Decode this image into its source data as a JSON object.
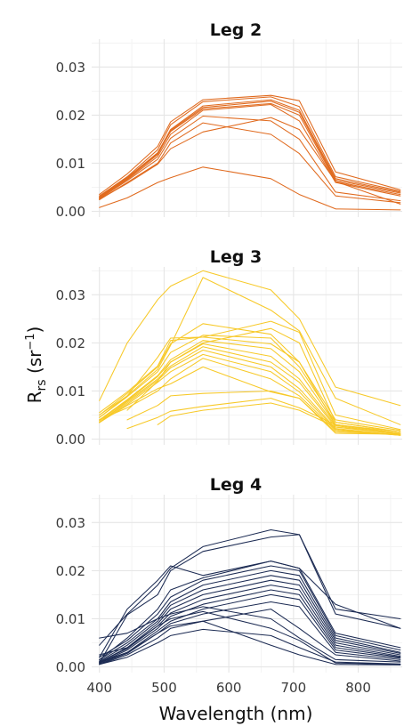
{
  "chart_data": {
    "type": "line",
    "ylabel": "R",
    "ylabel_sub": "rs",
    "ylabel_unit_open": " (sr",
    "ylabel_unit_sup": "−1",
    "ylabel_unit_close": ")",
    "xlabel": "Wavelength (nm)",
    "xlim": [
      388,
      868
    ],
    "ylim": [
      -0.0012,
      0.0358
    ],
    "xticks": [
      400,
      500,
      600,
      700,
      800
    ],
    "yticks": [
      0.0,
      0.01,
      0.02,
      0.03
    ],
    "ytick_labels": [
      "0.00",
      "0.01",
      "0.02",
      "0.03"
    ],
    "grid": true,
    "legend": "none",
    "x": [
      400,
      443,
      490,
      510,
      560,
      665,
      709,
      765,
      865
    ],
    "panels": [
      {
        "title": "Leg 2",
        "color": "#e06a1e",
        "series": [
          {
            "values": [
              0.0032,
              0.0072,
              0.0128,
              0.018,
              0.0228,
              0.0238,
              0.0218,
              0.0072,
              0.0042
            ]
          },
          {
            "values": [
              0.0035,
              0.0078,
              0.0135,
              0.0186,
              0.0232,
              0.0241,
              0.023,
              0.0082,
              0.0045
            ]
          },
          {
            "values": [
              0.003,
              0.007,
              0.0122,
              0.017,
              0.0219,
              0.0232,
              0.021,
              0.0068,
              0.004
            ]
          },
          {
            "values": [
              0.0028,
              0.0068,
              0.0118,
              0.0168,
              0.0216,
              0.0229,
              0.0206,
              0.0065,
              0.0038
            ]
          },
          {
            "values": [
              0.003,
              0.007,
              0.012,
              0.0166,
              0.0213,
              0.0224,
              0.02,
              0.0062,
              0.0035
            ]
          },
          {
            "values": [
              0.0028,
              0.0066,
              0.0114,
              0.016,
              0.021,
              0.0222,
              0.0188,
              0.006,
              0.0032
            ]
          },
          {
            "values": [
              0.0026,
              0.0064,
              0.0108,
              0.0152,
              0.0198,
              0.0188,
              0.015,
              0.004,
              0.0022
            ]
          },
          {
            "values": [
              0.0024,
              0.006,
              0.01,
              0.0142,
              0.0184,
              0.016,
              0.012,
              0.0032,
              0.0018
            ]
          },
          {
            "values": [
              0.0025,
              0.0058,
              0.0098,
              0.013,
              0.0165,
              0.0195,
              0.017,
              0.0062,
              0.0015
            ]
          },
          {
            "values": [
              0.0008,
              0.0028,
              0.006,
              0.007,
              0.0092,
              0.0068,
              0.0035,
              0.0005,
              0.0003
            ]
          }
        ]
      },
      {
        "title": "Leg 3",
        "color": "#f7c928",
        "series": [
          {
            "values": [
              0.008,
              0.02,
              0.029,
              0.0318,
              0.035,
              0.031,
              0.025,
              0.0108,
              0.007
            ]
          },
          {
            "values": [
              0.005,
              0.009,
              0.0145,
              0.0195,
              0.0336,
              0.0268,
              0.0225,
              0.0085,
              0.003
            ]
          },
          {
            "values": [
              0.0055,
              0.0098,
              0.0152,
              0.0205,
              0.0212,
              0.0245,
              0.0222,
              0.005,
              0.002
            ]
          },
          {
            "values": [
              0.005,
              0.0095,
              0.015,
              0.0198,
              0.024,
              0.0218,
              0.016,
              0.004,
              0.0018
            ]
          },
          {
            "values": [
              0.0045,
              0.0088,
              0.014,
              0.018,
              0.0216,
              0.021,
              0.015,
              0.0035,
              0.0015
            ]
          },
          {
            "values": [
              0.004,
              0.0082,
              0.0132,
              0.0165,
              0.0205,
              0.0188,
              0.014,
              0.003,
              0.0012
            ]
          },
          {
            "values": [
              0.0038,
              0.008,
              0.013,
              0.016,
              0.0198,
              0.0172,
              0.0125,
              0.0028,
              0.001
            ]
          },
          {
            "values": [
              0.0035,
              0.0078,
              0.0125,
              0.0152,
              0.0192,
              0.016,
              0.0118,
              0.0025,
              0.001
            ]
          },
          {
            "values": [
              0.0035,
              0.0075,
              0.0122,
              0.0148,
              0.0185,
              0.015,
              0.0105,
              0.0022,
              0.0008
            ]
          },
          {
            "values": [
              0.0034,
              0.0072,
              0.0118,
              0.014,
              0.0176,
              0.014,
              0.0098,
              0.002,
              0.0008
            ]
          },
          {
            "values": [
              0.004,
              0.0065,
              0.01,
              0.0125,
              0.0168,
              0.0125,
              0.009,
              0.0018,
              0.0008
            ]
          },
          {
            "values": [
              0.0035,
              0.007,
              0.0105,
              0.0115,
              0.015,
              0.0098,
              0.0085,
              0.0015,
              0.001
            ]
          },
          {
            "values": [
              null,
              0.004,
              0.007,
              0.009,
              0.0095,
              0.01,
              0.0085,
              0.0012,
              0.001
            ]
          },
          {
            "values": [
              null,
              0.0022,
              0.0045,
              0.0058,
              0.0068,
              0.0085,
              0.0065,
              0.003,
              0.0015
            ]
          },
          {
            "values": [
              null,
              null,
              0.003,
              0.0048,
              0.006,
              0.0075,
              0.006,
              0.0025,
              0.0012
            ]
          },
          {
            "values": [
              null,
              0.006,
              0.012,
              0.016,
              0.02,
              0.023,
              0.02,
              0.0035,
              0.0015
            ]
          },
          {
            "values": [
              0.0045,
              0.009,
              0.017,
              0.021,
              0.0212,
              0.0198,
              0.016,
              0.003,
              0.0012
            ]
          }
        ]
      },
      {
        "title": "Leg 4",
        "color": "#1c2b53",
        "series": [
          {
            "values": [
              0.0045,
              0.011,
              0.017,
              0.0205,
              0.025,
              0.0285,
              0.0275,
              0.012,
              0.01
            ]
          },
          {
            "values": [
              0.0008,
              0.0108,
              0.015,
              0.02,
              0.024,
              0.027,
              0.0275,
              0.011,
              0.008
            ]
          },
          {
            "values": [
              0.002,
              0.012,
              0.018,
              0.021,
              0.019,
              0.022,
              0.0205,
              0.013,
              0.008
            ]
          },
          {
            "values": [
              0.0015,
              0.006,
              0.012,
              0.016,
              0.0185,
              0.022,
              0.0205,
              0.007,
              0.004
            ]
          },
          {
            "values": [
              0.002,
              0.0055,
              0.011,
              0.0145,
              0.018,
              0.021,
              0.02,
              0.0065,
              0.0035
            ]
          },
          {
            "values": [
              0.0015,
              0.005,
              0.01,
              0.0135,
              0.017,
              0.02,
              0.019,
              0.006,
              0.003
            ]
          },
          {
            "values": [
              0.0012,
              0.0045,
              0.0095,
              0.0128,
              0.016,
              0.019,
              0.018,
              0.0055,
              0.0028
            ]
          },
          {
            "values": [
              0.001,
              0.004,
              0.009,
              0.012,
              0.015,
              0.018,
              0.017,
              0.005,
              0.0025
            ]
          },
          {
            "values": [
              0.001,
              0.0038,
              0.0085,
              0.0112,
              0.014,
              0.017,
              0.016,
              0.0045,
              0.0022
            ]
          },
          {
            "values": [
              0.0008,
              0.0035,
              0.008,
              0.0105,
              0.013,
              0.016,
              0.015,
              0.004,
              0.002
            ]
          },
          {
            "values": [
              0.0008,
              0.003,
              0.0075,
              0.0095,
              0.012,
              0.015,
              0.014,
              0.0035,
              0.0018
            ]
          },
          {
            "values": [
              0.0006,
              0.0028,
              0.007,
              0.009,
              0.011,
              0.0135,
              0.0125,
              0.003,
              0.0015
            ]
          },
          {
            "values": [
              0.0005,
              0.0025,
              0.006,
              0.008,
              0.0095,
              0.012,
              0.008,
              0.0025,
              0.0012
            ]
          },
          {
            "values": [
              0.0005,
              0.002,
              0.005,
              0.0065,
              0.0078,
              0.0065,
              0.004,
              0.001,
              0.0006
            ]
          },
          {
            "values": [
              0.0025,
              0.004,
              0.0085,
              0.01,
              0.0115,
              0.008,
              0.0055,
              0.0008,
              0.0005
            ]
          },
          {
            "values": [
              0.001,
              0.003,
              0.007,
              0.0085,
              0.0095,
              0.0045,
              0.0025,
              0.0005,
              0.0004
            ]
          },
          {
            "values": [
              0.006,
              0.007,
              0.01,
              0.011,
              0.0125,
              0.01,
              0.006,
              0.0015,
              0.001
            ]
          }
        ]
      }
    ]
  }
}
